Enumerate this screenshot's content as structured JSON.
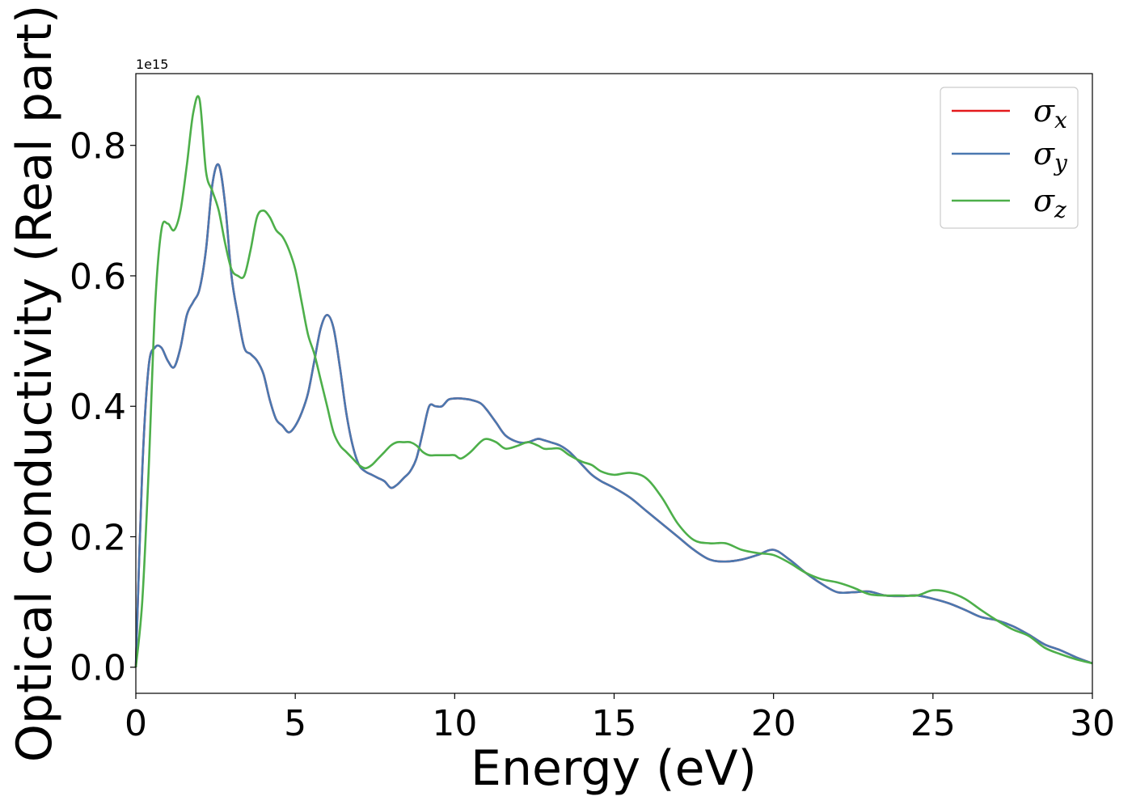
{
  "chart_data": {
    "type": "line",
    "xlabel": "Energy (eV)",
    "ylabel": "Optical conductivity (Real part)",
    "y_offset_label": "1e15",
    "xlim": [
      0,
      30
    ],
    "ylim": [
      -0.04,
      0.91
    ],
    "x_ticks": [
      0,
      5,
      10,
      15,
      20,
      25,
      30
    ],
    "x_tick_labels": [
      "0",
      "5",
      "10",
      "15",
      "20",
      "25",
      "30"
    ],
    "y_ticks": [
      0.0,
      0.2,
      0.4,
      0.6,
      0.8
    ],
    "y_tick_labels": [
      "0.0",
      "0.2",
      "0.4",
      "0.6",
      "0.8"
    ],
    "grid": false,
    "legend_position": "top-right",
    "series": [
      {
        "name": "σx",
        "legend_symbol": "σ",
        "legend_subscript": "x",
        "color": "#e41a1c",
        "x": [
          0,
          0.2,
          0.4,
          0.6,
          0.8,
          1.0,
          1.2,
          1.4,
          1.6,
          1.8,
          2.0,
          2.2,
          2.4,
          2.6,
          2.8,
          3.0,
          3.2,
          3.4,
          3.6,
          3.8,
          4.0,
          4.2,
          4.4,
          4.6,
          4.8,
          5.0,
          5.2,
          5.4,
          5.6,
          5.8,
          6.0,
          6.2,
          6.4,
          6.6,
          6.8,
          7.0,
          7.2,
          7.4,
          7.6,
          7.8,
          8.0,
          8.2,
          8.4,
          8.6,
          8.8,
          9.0,
          9.2,
          9.4,
          9.6,
          9.8,
          10.0,
          10.2,
          10.5,
          10.8,
          11.0,
          11.3,
          11.6,
          12.0,
          12.3,
          12.6,
          12.8,
          13.0,
          13.3,
          13.6,
          14.0,
          14.3,
          14.6,
          15.0,
          15.5,
          16.0,
          16.5,
          17.0,
          17.5,
          18.0,
          18.5,
          19.0,
          19.5,
          20.0,
          20.5,
          21.0,
          21.5,
          22.0,
          22.5,
          23.0,
          23.5,
          24.0,
          24.5,
          25.0,
          25.5,
          26.0,
          26.5,
          27.0,
          27.5,
          28.0,
          28.5,
          29.0,
          29.5,
          30.0
        ],
        "values": [
          0.0,
          0.3,
          0.46,
          0.49,
          0.49,
          0.47,
          0.46,
          0.49,
          0.54,
          0.56,
          0.58,
          0.64,
          0.74,
          0.77,
          0.71,
          0.6,
          0.54,
          0.49,
          0.48,
          0.47,
          0.45,
          0.41,
          0.38,
          0.37,
          0.36,
          0.37,
          0.39,
          0.42,
          0.47,
          0.52,
          0.54,
          0.52,
          0.46,
          0.39,
          0.34,
          0.31,
          0.3,
          0.295,
          0.29,
          0.285,
          0.275,
          0.28,
          0.29,
          0.3,
          0.32,
          0.36,
          0.4,
          0.4,
          0.4,
          0.41,
          0.412,
          0.412,
          0.41,
          0.405,
          0.395,
          0.375,
          0.355,
          0.345,
          0.345,
          0.35,
          0.348,
          0.345,
          0.34,
          0.33,
          0.31,
          0.295,
          0.285,
          0.275,
          0.26,
          0.24,
          0.22,
          0.2,
          0.18,
          0.165,
          0.162,
          0.165,
          0.172,
          0.18,
          0.165,
          0.145,
          0.128,
          0.115,
          0.115,
          0.116,
          0.11,
          0.109,
          0.11,
          0.105,
          0.098,
          0.088,
          0.077,
          0.072,
          0.063,
          0.05,
          0.035,
          0.026,
          0.015,
          0.006
        ]
      },
      {
        "name": "σy",
        "legend_symbol": "σ",
        "legend_subscript": "y",
        "color": "#4a78b0",
        "x": [
          0,
          0.2,
          0.4,
          0.6,
          0.8,
          1.0,
          1.2,
          1.4,
          1.6,
          1.8,
          2.0,
          2.2,
          2.4,
          2.6,
          2.8,
          3.0,
          3.2,
          3.4,
          3.6,
          3.8,
          4.0,
          4.2,
          4.4,
          4.6,
          4.8,
          5.0,
          5.2,
          5.4,
          5.6,
          5.8,
          6.0,
          6.2,
          6.4,
          6.6,
          6.8,
          7.0,
          7.2,
          7.4,
          7.6,
          7.8,
          8.0,
          8.2,
          8.4,
          8.6,
          8.8,
          9.0,
          9.2,
          9.4,
          9.6,
          9.8,
          10.0,
          10.2,
          10.5,
          10.8,
          11.0,
          11.3,
          11.6,
          12.0,
          12.3,
          12.6,
          12.8,
          13.0,
          13.3,
          13.6,
          14.0,
          14.3,
          14.6,
          15.0,
          15.5,
          16.0,
          16.5,
          17.0,
          17.5,
          18.0,
          18.5,
          19.0,
          19.5,
          20.0,
          20.5,
          21.0,
          21.5,
          22.0,
          22.5,
          23.0,
          23.5,
          24.0,
          24.5,
          25.0,
          25.5,
          26.0,
          26.5,
          27.0,
          27.5,
          28.0,
          28.5,
          29.0,
          29.5,
          30.0
        ],
        "values": [
          0.0,
          0.3,
          0.46,
          0.49,
          0.49,
          0.47,
          0.46,
          0.49,
          0.54,
          0.56,
          0.58,
          0.64,
          0.74,
          0.77,
          0.71,
          0.6,
          0.54,
          0.49,
          0.48,
          0.47,
          0.45,
          0.41,
          0.38,
          0.37,
          0.36,
          0.37,
          0.39,
          0.42,
          0.47,
          0.52,
          0.54,
          0.52,
          0.46,
          0.39,
          0.34,
          0.31,
          0.3,
          0.295,
          0.29,
          0.285,
          0.275,
          0.28,
          0.29,
          0.3,
          0.32,
          0.36,
          0.4,
          0.4,
          0.4,
          0.41,
          0.412,
          0.412,
          0.41,
          0.405,
          0.395,
          0.375,
          0.355,
          0.345,
          0.345,
          0.35,
          0.348,
          0.345,
          0.34,
          0.33,
          0.31,
          0.295,
          0.285,
          0.275,
          0.26,
          0.24,
          0.22,
          0.2,
          0.18,
          0.165,
          0.162,
          0.165,
          0.172,
          0.18,
          0.165,
          0.145,
          0.128,
          0.115,
          0.115,
          0.116,
          0.11,
          0.109,
          0.11,
          0.105,
          0.098,
          0.088,
          0.077,
          0.072,
          0.063,
          0.05,
          0.035,
          0.026,
          0.015,
          0.006
        ]
      },
      {
        "name": "σz",
        "legend_symbol": "σ",
        "legend_subscript": "z",
        "color": "#4daf4a",
        "x": [
          0,
          0.2,
          0.4,
          0.6,
          0.8,
          1.0,
          1.2,
          1.4,
          1.6,
          1.8,
          2.0,
          2.2,
          2.4,
          2.6,
          2.8,
          3.0,
          3.2,
          3.4,
          3.6,
          3.8,
          4.0,
          4.2,
          4.4,
          4.6,
          4.8,
          5.0,
          5.2,
          5.4,
          5.6,
          5.8,
          6.0,
          6.2,
          6.4,
          6.6,
          6.8,
          7.0,
          7.2,
          7.4,
          7.6,
          7.8,
          8.0,
          8.2,
          8.4,
          8.6,
          8.8,
          9.0,
          9.2,
          9.4,
          9.6,
          9.8,
          10.0,
          10.2,
          10.5,
          10.8,
          11.0,
          11.3,
          11.6,
          12.0,
          12.3,
          12.6,
          12.8,
          13.0,
          13.3,
          13.6,
          14.0,
          14.3,
          14.6,
          15.0,
          15.5,
          16.0,
          16.5,
          17.0,
          17.5,
          18.0,
          18.5,
          19.0,
          19.5,
          20.0,
          20.5,
          21.0,
          21.5,
          22.0,
          22.5,
          23.0,
          23.5,
          24.0,
          24.5,
          25.0,
          25.5,
          26.0,
          26.5,
          27.0,
          27.5,
          28.0,
          28.5,
          29.0,
          29.5,
          30.0
        ],
        "values": [
          0.0,
          0.1,
          0.3,
          0.55,
          0.67,
          0.68,
          0.67,
          0.7,
          0.77,
          0.85,
          0.87,
          0.76,
          0.73,
          0.7,
          0.65,
          0.61,
          0.6,
          0.6,
          0.64,
          0.69,
          0.7,
          0.69,
          0.67,
          0.66,
          0.64,
          0.61,
          0.56,
          0.51,
          0.48,
          0.44,
          0.4,
          0.36,
          0.34,
          0.33,
          0.32,
          0.31,
          0.305,
          0.31,
          0.32,
          0.33,
          0.34,
          0.345,
          0.345,
          0.345,
          0.34,
          0.33,
          0.325,
          0.325,
          0.325,
          0.325,
          0.325,
          0.32,
          0.33,
          0.345,
          0.35,
          0.345,
          0.335,
          0.34,
          0.345,
          0.34,
          0.335,
          0.335,
          0.335,
          0.325,
          0.315,
          0.31,
          0.3,
          0.295,
          0.298,
          0.29,
          0.26,
          0.22,
          0.195,
          0.19,
          0.19,
          0.18,
          0.175,
          0.172,
          0.16,
          0.145,
          0.135,
          0.13,
          0.122,
          0.112,
          0.11,
          0.11,
          0.11,
          0.118,
          0.115,
          0.105,
          0.088,
          0.072,
          0.058,
          0.048,
          0.03,
          0.02,
          0.012,
          0.006
        ]
      }
    ]
  }
}
